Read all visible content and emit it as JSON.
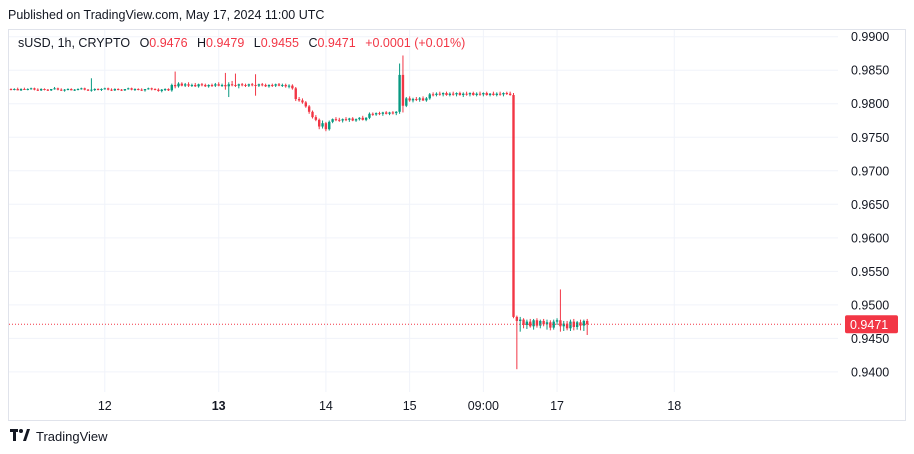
{
  "header": {
    "published_text": "Published on TradingView.com, May 17, 2024 11:00 UTC"
  },
  "legend": {
    "symbol": "sUSD, 1h, CRYPTO",
    "o_label": "O",
    "o_value": "0.9476",
    "h_label": "H",
    "h_value": "0.9479",
    "l_label": "L",
    "l_value": "0.9455",
    "c_label": "C",
    "c_value": "0.9471",
    "change": "+0.0001 (+0.01%)"
  },
  "footer": {
    "brand": "TradingView"
  },
  "colors": {
    "up": "#089981",
    "down": "#f23645",
    "grid": "#f0f3fa",
    "text": "#131722"
  },
  "chart_data": {
    "type": "candlestick",
    "grid": true,
    "y_axis_position": "right",
    "ylim": [
      0.937,
      0.991
    ],
    "y_ticks": [
      0.99,
      0.985,
      0.98,
      0.975,
      0.97,
      0.965,
      0.96,
      0.955,
      0.95,
      0.945,
      0.94
    ],
    "x_ticks": [
      {
        "label": "12",
        "index": 28,
        "bold": false
      },
      {
        "label": "13",
        "index": 62,
        "bold": true
      },
      {
        "label": "14",
        "index": 94,
        "bold": false
      },
      {
        "label": "15",
        "index": 119,
        "bold": false
      },
      {
        "label": "09:00",
        "index": 141,
        "bold": false
      },
      {
        "label": "17",
        "index": 163,
        "bold": false
      },
      {
        "label": "18",
        "index": 198,
        "bold": false
      }
    ],
    "last_price": {
      "value": 0.9471,
      "label": "0.9471"
    },
    "candles": [
      [
        0.9822,
        0.9823,
        0.982,
        0.9821
      ],
      [
        0.9821,
        0.9823,
        0.982,
        0.9822
      ],
      [
        0.9822,
        0.9824,
        0.982,
        0.982
      ],
      [
        0.982,
        0.9823,
        0.9819,
        0.9822
      ],
      [
        0.9822,
        0.9824,
        0.9821,
        0.9821
      ],
      [
        0.9821,
        0.9823,
        0.982,
        0.9822
      ],
      [
        0.9822,
        0.9824,
        0.9821,
        0.9823
      ],
      [
        0.9823,
        0.9824,
        0.982,
        0.9821
      ],
      [
        0.9821,
        0.9823,
        0.9819,
        0.982
      ],
      [
        0.982,
        0.9823,
        0.9819,
        0.9822
      ],
      [
        0.9822,
        0.9823,
        0.982,
        0.9821
      ],
      [
        0.9821,
        0.9822,
        0.9819,
        0.982
      ],
      [
        0.982,
        0.9822,
        0.9819,
        0.9822
      ],
      [
        0.9822,
        0.9825,
        0.9821,
        0.9823
      ],
      [
        0.9823,
        0.9824,
        0.982,
        0.9821
      ],
      [
        0.9821,
        0.9823,
        0.9819,
        0.982
      ],
      [
        0.982,
        0.9822,
        0.9818,
        0.9821
      ],
      [
        0.9821,
        0.9823,
        0.982,
        0.9822
      ],
      [
        0.9822,
        0.9823,
        0.982,
        0.982
      ],
      [
        0.982,
        0.9822,
        0.9819,
        0.9821
      ],
      [
        0.9821,
        0.9823,
        0.982,
        0.9822
      ],
      [
        0.9822,
        0.9824,
        0.9821,
        0.9823
      ],
      [
        0.9823,
        0.9824,
        0.982,
        0.9821
      ],
      [
        0.9821,
        0.9822,
        0.9819,
        0.982
      ],
      [
        0.982,
        0.9838,
        0.9818,
        0.9821
      ],
      [
        0.9821,
        0.9823,
        0.9819,
        0.9822
      ],
      [
        0.9822,
        0.9823,
        0.982,
        0.9821
      ],
      [
        0.9821,
        0.9823,
        0.9819,
        0.9822
      ],
      [
        0.9822,
        0.9824,
        0.9821,
        0.9823
      ],
      [
        0.9823,
        0.9824,
        0.982,
        0.9821
      ],
      [
        0.9821,
        0.9823,
        0.9819,
        0.982
      ],
      [
        0.982,
        0.9823,
        0.9819,
        0.9822
      ],
      [
        0.9822,
        0.9823,
        0.982,
        0.9821
      ],
      [
        0.9821,
        0.9822,
        0.9819,
        0.982
      ],
      [
        0.982,
        0.9822,
        0.9819,
        0.9822
      ],
      [
        0.9822,
        0.9824,
        0.9821,
        0.9823
      ],
      [
        0.9823,
        0.9824,
        0.982,
        0.9821
      ],
      [
        0.9821,
        0.9823,
        0.9819,
        0.9822
      ],
      [
        0.9822,
        0.9823,
        0.982,
        0.9821
      ],
      [
        0.9821,
        0.9823,
        0.9819,
        0.982
      ],
      [
        0.982,
        0.9822,
        0.9818,
        0.9822
      ],
      [
        0.9822,
        0.9824,
        0.9821,
        0.9823
      ],
      [
        0.9823,
        0.9824,
        0.982,
        0.9822
      ],
      [
        0.9822,
        0.9823,
        0.982,
        0.9821
      ],
      [
        0.9821,
        0.9823,
        0.9818,
        0.9819
      ],
      [
        0.9819,
        0.9822,
        0.9817,
        0.9821
      ],
      [
        0.9821,
        0.9823,
        0.9819,
        0.9822
      ],
      [
        0.9822,
        0.9823,
        0.9819,
        0.982
      ],
      [
        0.982,
        0.983,
        0.9818,
        0.9828
      ],
      [
        0.9828,
        0.9848,
        0.9823,
        0.9826
      ],
      [
        0.9826,
        0.9832,
        0.9824,
        0.983
      ],
      [
        0.983,
        0.9832,
        0.9826,
        0.9827
      ],
      [
        0.9827,
        0.9831,
        0.9825,
        0.9829
      ],
      [
        0.9829,
        0.9832,
        0.9825,
        0.9827
      ],
      [
        0.9827,
        0.983,
        0.9825,
        0.9828
      ],
      [
        0.9828,
        0.9831,
        0.9825,
        0.9826
      ],
      [
        0.9826,
        0.983,
        0.9824,
        0.9829
      ],
      [
        0.9829,
        0.9831,
        0.9826,
        0.9828
      ],
      [
        0.9828,
        0.983,
        0.9825,
        0.9826
      ],
      [
        0.9826,
        0.9829,
        0.9824,
        0.9828
      ],
      [
        0.9828,
        0.983,
        0.9825,
        0.9827
      ],
      [
        0.9827,
        0.9831,
        0.9825,
        0.9829
      ],
      [
        0.9829,
        0.9832,
        0.9826,
        0.9827
      ],
      [
        0.9827,
        0.983,
        0.9825,
        0.9828
      ],
      [
        0.9828,
        0.9846,
        0.9821,
        0.9826
      ],
      [
        0.9826,
        0.9832,
        0.981,
        0.9829
      ],
      [
        0.9829,
        0.9834,
        0.9826,
        0.9828
      ],
      [
        0.9828,
        0.9845,
        0.9825,
        0.9827
      ],
      [
        0.9827,
        0.983,
        0.9823,
        0.9829
      ],
      [
        0.9829,
        0.9831,
        0.9826,
        0.9828
      ],
      [
        0.9828,
        0.983,
        0.9825,
        0.9827
      ],
      [
        0.9827,
        0.983,
        0.9825,
        0.9829
      ],
      [
        0.9829,
        0.9831,
        0.9826,
        0.9828
      ],
      [
        0.9828,
        0.9844,
        0.9812,
        0.9827
      ],
      [
        0.9827,
        0.983,
        0.9825,
        0.9829
      ],
      [
        0.9829,
        0.9831,
        0.9826,
        0.9828
      ],
      [
        0.9828,
        0.983,
        0.9825,
        0.9826
      ],
      [
        0.9826,
        0.9829,
        0.9824,
        0.9828
      ],
      [
        0.9828,
        0.983,
        0.9825,
        0.9827
      ],
      [
        0.9827,
        0.983,
        0.9825,
        0.9829
      ],
      [
        0.9829,
        0.9831,
        0.9826,
        0.9827
      ],
      [
        0.9827,
        0.983,
        0.9825,
        0.9828
      ],
      [
        0.9828,
        0.983,
        0.9824,
        0.9826
      ],
      [
        0.9826,
        0.9829,
        0.9823,
        0.9827
      ],
      [
        0.9827,
        0.9829,
        0.9821,
        0.9823
      ],
      [
        0.9823,
        0.9825,
        0.9804,
        0.9807
      ],
      [
        0.9807,
        0.981,
        0.9803,
        0.9805
      ],
      [
        0.9805,
        0.9808,
        0.98,
        0.9802
      ],
      [
        0.9802,
        0.9804,
        0.9794,
        0.9796
      ],
      [
        0.9796,
        0.9798,
        0.9785,
        0.9788
      ],
      [
        0.9788,
        0.979,
        0.9778,
        0.978
      ],
      [
        0.978,
        0.9783,
        0.9774,
        0.9776
      ],
      [
        0.9776,
        0.9778,
        0.9762,
        0.9766
      ],
      [
        0.9766,
        0.9775,
        0.9763,
        0.9771
      ],
      [
        0.9771,
        0.9773,
        0.9759,
        0.9762
      ],
      [
        0.9762,
        0.9775,
        0.976,
        0.9773
      ],
      [
        0.9773,
        0.9778,
        0.9771,
        0.9777
      ],
      [
        0.9777,
        0.978,
        0.9774,
        0.9776
      ],
      [
        0.9776,
        0.9779,
        0.9773,
        0.9775
      ],
      [
        0.9775,
        0.9778,
        0.9772,
        0.9777
      ],
      [
        0.9777,
        0.978,
        0.9774,
        0.9776
      ],
      [
        0.9776,
        0.9779,
        0.9773,
        0.9778
      ],
      [
        0.9778,
        0.978,
        0.9774,
        0.9775
      ],
      [
        0.9775,
        0.9778,
        0.9773,
        0.9777
      ],
      [
        0.9777,
        0.978,
        0.9775,
        0.9779
      ],
      [
        0.9779,
        0.9782,
        0.9775,
        0.9776
      ],
      [
        0.9776,
        0.978,
        0.9774,
        0.9779
      ],
      [
        0.9779,
        0.9787,
        0.9777,
        0.9785
      ],
      [
        0.9785,
        0.9787,
        0.9782,
        0.9784
      ],
      [
        0.9784,
        0.9787,
        0.9782,
        0.9786
      ],
      [
        0.9786,
        0.9788,
        0.9783,
        0.9785
      ],
      [
        0.9785,
        0.9788,
        0.9782,
        0.9787
      ],
      [
        0.9787,
        0.9789,
        0.9784,
        0.9785
      ],
      [
        0.9785,
        0.9788,
        0.9783,
        0.9787
      ],
      [
        0.9787,
        0.9789,
        0.9784,
        0.9786
      ],
      [
        0.9786,
        0.9789,
        0.9783,
        0.9788
      ],
      [
        0.9788,
        0.986,
        0.9785,
        0.9843
      ],
      [
        0.9843,
        0.9872,
        0.9787,
        0.9797
      ],
      [
        0.9797,
        0.981,
        0.9795,
        0.9808
      ],
      [
        0.9808,
        0.9811,
        0.9803,
        0.9805
      ],
      [
        0.9805,
        0.9809,
        0.9802,
        0.9807
      ],
      [
        0.9807,
        0.981,
        0.9804,
        0.9806
      ],
      [
        0.9806,
        0.981,
        0.9803,
        0.9808
      ],
      [
        0.9808,
        0.9811,
        0.9804,
        0.9805
      ],
      [
        0.9805,
        0.981,
        0.9803,
        0.9808
      ],
      [
        0.9808,
        0.9816,
        0.9806,
        0.9814
      ],
      [
        0.9814,
        0.9817,
        0.9811,
        0.9813
      ],
      [
        0.9813,
        0.9817,
        0.9811,
        0.9815
      ],
      [
        0.9815,
        0.9818,
        0.9812,
        0.9814
      ],
      [
        0.9814,
        0.9817,
        0.9811,
        0.9816
      ],
      [
        0.9816,
        0.9818,
        0.9812,
        0.9813
      ],
      [
        0.9813,
        0.9817,
        0.9811,
        0.9815
      ],
      [
        0.9815,
        0.9818,
        0.9812,
        0.9814
      ],
      [
        0.9814,
        0.9817,
        0.9811,
        0.9816
      ],
      [
        0.9816,
        0.9818,
        0.9812,
        0.9813
      ],
      [
        0.9813,
        0.9817,
        0.981,
        0.9815
      ],
      [
        0.9815,
        0.9818,
        0.9812,
        0.9814
      ],
      [
        0.9814,
        0.9817,
        0.9811,
        0.9816
      ],
      [
        0.9816,
        0.9818,
        0.9812,
        0.9813
      ],
      [
        0.9813,
        0.9817,
        0.9811,
        0.9815
      ],
      [
        0.9815,
        0.9818,
        0.9812,
        0.9814
      ],
      [
        0.9814,
        0.9817,
        0.9811,
        0.9816
      ],
      [
        0.9816,
        0.9818,
        0.9812,
        0.9813
      ],
      [
        0.9813,
        0.9816,
        0.9811,
        0.9815
      ],
      [
        0.9815,
        0.9818,
        0.9812,
        0.9813
      ],
      [
        0.9813,
        0.9817,
        0.9811,
        0.9815
      ],
      [
        0.9815,
        0.9818,
        0.9812,
        0.9814
      ],
      [
        0.9814,
        0.9817,
        0.9811,
        0.9816
      ],
      [
        0.9816,
        0.9818,
        0.9813,
        0.9815
      ],
      [
        0.9815,
        0.9818,
        0.9812,
        0.9813
      ],
      [
        0.9813,
        0.9816,
        0.948,
        0.9482
      ],
      [
        0.9482,
        0.9484,
        0.9404,
        0.9476
      ],
      [
        0.9476,
        0.9482,
        0.946,
        0.9478
      ],
      [
        0.9478,
        0.948,
        0.9465,
        0.947
      ],
      [
        0.947,
        0.9478,
        0.9464,
        0.9475
      ],
      [
        0.9475,
        0.9479,
        0.9466,
        0.9468
      ],
      [
        0.9468,
        0.9479,
        0.9463,
        0.9477
      ],
      [
        0.9477,
        0.948,
        0.9466,
        0.9469
      ],
      [
        0.9469,
        0.9478,
        0.9465,
        0.9476
      ],
      [
        0.9476,
        0.9479,
        0.9468,
        0.9471
      ],
      [
        0.9471,
        0.9478,
        0.9463,
        0.9474
      ],
      [
        0.9474,
        0.9477,
        0.9462,
        0.9466
      ],
      [
        0.9466,
        0.9478,
        0.9463,
        0.9475
      ],
      [
        0.9475,
        0.948,
        0.947,
        0.9477
      ],
      [
        0.9477,
        0.9523,
        0.946,
        0.9468
      ],
      [
        0.9468,
        0.9476,
        0.9461,
        0.9472
      ],
      [
        0.9472,
        0.9476,
        0.9462,
        0.9465
      ],
      [
        0.9465,
        0.9478,
        0.9461,
        0.9475
      ],
      [
        0.9475,
        0.9479,
        0.9462,
        0.9467
      ],
      [
        0.9467,
        0.9476,
        0.9463,
        0.9474
      ],
      [
        0.9474,
        0.9478,
        0.9462,
        0.9469
      ],
      [
        0.9469,
        0.9478,
        0.9461,
        0.9476
      ],
      [
        0.9476,
        0.9479,
        0.9455,
        0.9471
      ]
    ]
  }
}
